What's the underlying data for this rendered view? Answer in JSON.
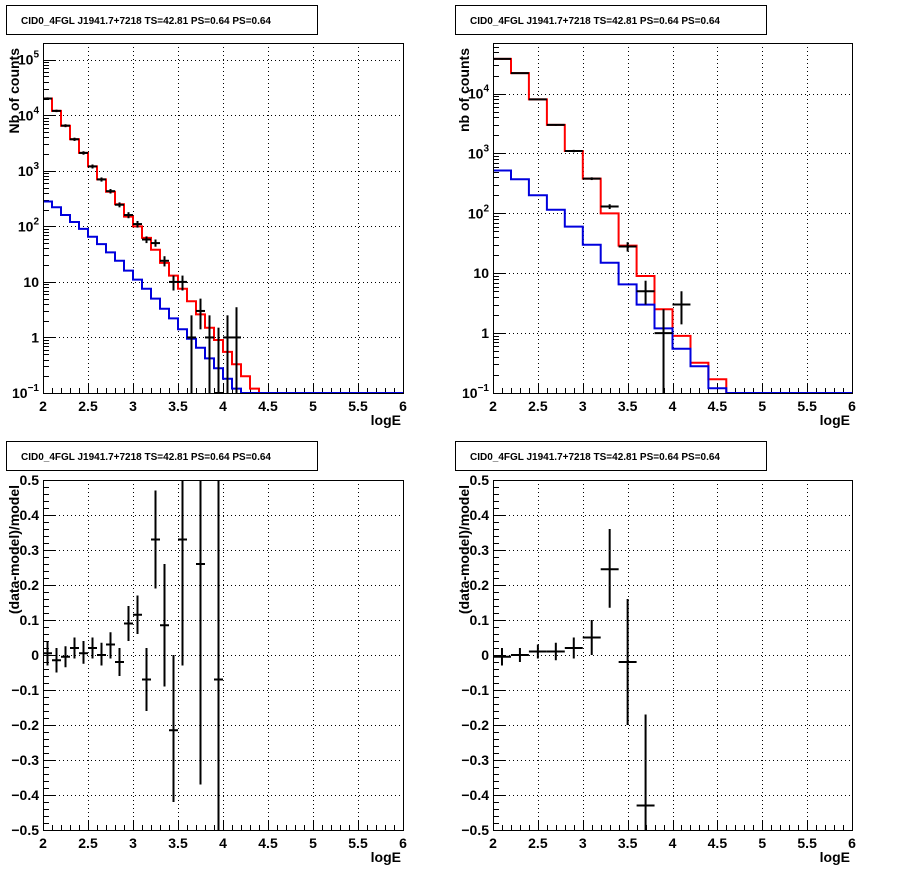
{
  "colors": {
    "data": "#000000",
    "total_model": "#ff0000",
    "component_model": "#0000dd"
  },
  "chart_data": [
    {
      "type": "line",
      "title": "CID0_4FGL J1941.7+7218 TS=42.81 PS=0.64 PS=0.64",
      "xlabel": "logE",
      "ylabel": "Nb of counts",
      "x_scale": "linear",
      "y_scale": "log",
      "xlim": [
        2,
        6
      ],
      "ylim": [
        0.1,
        200000
      ],
      "x_ticks": [
        "2",
        "2.5",
        "3",
        "3.5",
        "4",
        "4.5",
        "5",
        "5.5",
        "6"
      ],
      "y_ticks": [
        {
          "value": 0.1,
          "base": "10",
          "exp": "−1"
        },
        {
          "value": 1,
          "label": "1"
        },
        {
          "value": 10,
          "label": "10"
        },
        {
          "value": 100,
          "base": "10",
          "exp": "2"
        },
        {
          "value": 1000,
          "base": "10",
          "exp": "3"
        },
        {
          "value": 10000,
          "base": "10",
          "exp": "4"
        },
        {
          "value": 100000,
          "base": "10",
          "exp": "5"
        }
      ],
      "grid": true,
      "series": [
        {
          "role": "total_model",
          "style": "step",
          "bin_edges": [
            2.0,
            2.1,
            2.2,
            2.3,
            2.4,
            2.5,
            2.6,
            2.7,
            2.8,
            2.9,
            3.0,
            3.1,
            3.2,
            3.3,
            3.4,
            3.5,
            3.6,
            3.7,
            3.8,
            3.9,
            4.0,
            4.1,
            4.2,
            4.3,
            4.4,
            4.5,
            4.6,
            4.7,
            4.8,
            4.9,
            5.0,
            5.1,
            5.2,
            5.3,
            5.4,
            5.5,
            5.6,
            5.7,
            5.8,
            5.9,
            6.0
          ],
          "values": [
            20000,
            12000,
            6500,
            3700,
            2100,
            1200,
            700,
            420,
            250,
            150,
            100,
            62,
            38,
            22,
            13,
            7.5,
            4.5,
            2.6,
            1.5,
            0.9,
            0.55,
            0.33,
            0.2,
            0.12,
            0.1,
            0.1,
            0.1,
            0.1,
            0.1,
            0.1,
            0.1,
            0.1,
            0.1,
            0.1,
            0.1,
            0.1,
            0.1,
            0.1,
            0.1,
            0.1
          ]
        },
        {
          "role": "component_model",
          "style": "step",
          "bin_edges": [
            2.0,
            2.1,
            2.2,
            2.3,
            2.4,
            2.5,
            2.6,
            2.7,
            2.8,
            2.9,
            3.0,
            3.1,
            3.2,
            3.3,
            3.4,
            3.5,
            3.6,
            3.7,
            3.8,
            3.9,
            4.0,
            4.1,
            4.2,
            4.3,
            4.4,
            4.5,
            4.6,
            4.7,
            4.8,
            4.9,
            5.0,
            5.1,
            5.2,
            5.3,
            5.4,
            5.5,
            5.6,
            5.7,
            5.8,
            5.9,
            6.0
          ],
          "values": [
            280,
            220,
            160,
            120,
            90,
            65,
            48,
            34,
            24,
            16,
            11,
            7.5,
            5,
            3.3,
            2.2,
            1.4,
            0.95,
            0.65,
            0.42,
            0.28,
            0.18,
            0.12,
            0.1,
            0.1,
            0.1,
            0.1,
            0.1,
            0.1,
            0.1,
            0.1,
            0.1,
            0.1,
            0.1,
            0.1,
            0.1,
            0.1,
            0.1,
            0.1,
            0.1,
            0.1
          ]
        },
        {
          "role": "data",
          "style": "errorbar",
          "xerr": 0.05,
          "points": [
            {
              "x": 2.05,
              "y": 20000,
              "lo": 19000,
              "hi": 21000
            },
            {
              "x": 2.15,
              "y": 12000,
              "lo": 11400,
              "hi": 12600
            },
            {
              "x": 2.25,
              "y": 6500,
              "lo": 6100,
              "hi": 6900
            },
            {
              "x": 2.35,
              "y": 3700,
              "lo": 3450,
              "hi": 3950
            },
            {
              "x": 2.45,
              "y": 2100,
              "lo": 1950,
              "hi": 2250
            },
            {
              "x": 2.55,
              "y": 1200,
              "lo": 1100,
              "hi": 1300
            },
            {
              "x": 2.65,
              "y": 700,
              "lo": 640,
              "hi": 760
            },
            {
              "x": 2.75,
              "y": 430,
              "lo": 390,
              "hi": 470
            },
            {
              "x": 2.85,
              "y": 245,
              "lo": 220,
              "hi": 270
            },
            {
              "x": 2.95,
              "y": 160,
              "lo": 140,
              "hi": 180
            },
            {
              "x": 3.05,
              "y": 110,
              "lo": 95,
              "hi": 125
            },
            {
              "x": 3.15,
              "y": 58,
              "lo": 50,
              "hi": 66
            },
            {
              "x": 3.25,
              "y": 50,
              "lo": 43,
              "hi": 58
            },
            {
              "x": 3.35,
              "y": 24,
              "lo": 19,
              "hi": 29
            },
            {
              "x": 3.45,
              "y": 10,
              "lo": 7,
              "hi": 13
            },
            {
              "x": 3.55,
              "y": 10,
              "lo": 7,
              "hi": 13
            },
            {
              "x": 3.65,
              "y": 1,
              "lo": 0.1,
              "hi": 2.5
            },
            {
              "x": 3.75,
              "y": 3,
              "lo": 1.4,
              "hi": 5
            },
            {
              "x": 3.85,
              "y": 1,
              "lo": 0.1,
              "hi": 2.5
            },
            {
              "x": 3.95,
              "y": 0.1,
              "lo": 0.1,
              "hi": 1.5
            },
            {
              "x": 4.05,
              "y": 1,
              "lo": 0.1,
              "hi": 2.5
            },
            {
              "x": 4.15,
              "y": 1,
              "lo": 0.1,
              "hi": 3.5
            }
          ]
        }
      ]
    },
    {
      "type": "line",
      "title": "CID0_4FGL J1941.7+7218 TS=42.81 PS=0.64 PS=0.64",
      "xlabel": "logE",
      "ylabel": "nb of counts",
      "x_scale": "linear",
      "y_scale": "log",
      "xlim": [
        2,
        6
      ],
      "ylim": [
        0.1,
        70000
      ],
      "x_ticks": [
        "2",
        "2.5",
        "3",
        "3.5",
        "4",
        "4.5",
        "5",
        "5.5",
        "6"
      ],
      "y_ticks": [
        {
          "value": 0.1,
          "base": "10",
          "exp": "−1"
        },
        {
          "value": 1,
          "label": "1"
        },
        {
          "value": 10,
          "label": "10"
        },
        {
          "value": 100,
          "base": "10",
          "exp": "2"
        },
        {
          "value": 1000,
          "base": "10",
          "exp": "3"
        },
        {
          "value": 10000,
          "base": "10",
          "exp": "4"
        }
      ],
      "grid": true,
      "series": [
        {
          "role": "total_model",
          "style": "step",
          "bin_edges": [
            2.0,
            2.2,
            2.4,
            2.6,
            2.8,
            3.0,
            3.2,
            3.4,
            3.6,
            3.8,
            4.0,
            4.2,
            4.4,
            4.6,
            4.8,
            5.0,
            5.2,
            5.4,
            5.6,
            5.8,
            6.0
          ],
          "values": [
            38000,
            22000,
            8000,
            3000,
            1100,
            380,
            100,
            29,
            9,
            2.5,
            0.9,
            0.32,
            0.17,
            0.1,
            0.1,
            0.1,
            0.1,
            0.1,
            0.1,
            0.1
          ]
        },
        {
          "role": "component_model",
          "style": "step",
          "bin_edges": [
            2.0,
            2.2,
            2.4,
            2.6,
            2.8,
            3.0,
            3.2,
            3.4,
            3.6,
            3.8,
            4.0,
            4.2,
            4.4,
            4.6,
            4.8,
            5.0,
            5.2,
            5.4,
            5.6,
            5.8,
            6.0
          ],
          "values": [
            520,
            370,
            200,
            115,
            60,
            30,
            15,
            6.5,
            3,
            1.2,
            0.55,
            0.28,
            0.12,
            0.1,
            0.1,
            0.1,
            0.1,
            0.1,
            0.1,
            0.1
          ]
        },
        {
          "role": "data",
          "style": "errorbar",
          "xerr": 0.1,
          "points": [
            {
              "x": 2.1,
              "y": 38000,
              "lo": 37000,
              "hi": 39000
            },
            {
              "x": 2.3,
              "y": 22000,
              "lo": 21500,
              "hi": 22500
            },
            {
              "x": 2.5,
              "y": 8000,
              "lo": 7800,
              "hi": 8200
            },
            {
              "x": 2.7,
              "y": 3000,
              "lo": 2900,
              "hi": 3100
            },
            {
              "x": 2.9,
              "y": 1100,
              "lo": 1050,
              "hi": 1150
            },
            {
              "x": 3.1,
              "y": 380,
              "lo": 360,
              "hi": 400
            },
            {
              "x": 3.3,
              "y": 130,
              "lo": 118,
              "hi": 142
            },
            {
              "x": 3.5,
              "y": 28,
              "lo": 23,
              "hi": 33
            },
            {
              "x": 3.7,
              "y": 5,
              "lo": 3,
              "hi": 7.5
            },
            {
              "x": 3.9,
              "y": 1,
              "lo": 0.1,
              "hi": 2.5
            },
            {
              "x": 4.1,
              "y": 3,
              "lo": 1.4,
              "hi": 5
            }
          ]
        }
      ]
    },
    {
      "type": "scatter",
      "title": "CID0_4FGL J1941.7+7218 TS=42.81 PS=0.64 PS=0.64",
      "xlabel": "logE",
      "ylabel": "(data-model)/model",
      "x_scale": "linear",
      "y_scale": "linear",
      "xlim": [
        2,
        6
      ],
      "ylim": [
        -0.5,
        0.5
      ],
      "x_ticks": [
        "2",
        "2.5",
        "3",
        "3.5",
        "4",
        "4.5",
        "5",
        "5.5",
        "6"
      ],
      "y_ticks": [
        "−0.5",
        "−0.4",
        "−0.3",
        "−0.2",
        "−0.1",
        "0",
        "0.1",
        "0.2",
        "0.3",
        "0.4",
        "0.5"
      ],
      "grid": true,
      "series": [
        {
          "role": "data",
          "style": "errorbar",
          "xerr": 0.05,
          "points": [
            {
              "x": 2.05,
              "y": 0.005,
              "lo": -0.03,
              "hi": 0.04
            },
            {
              "x": 2.15,
              "y": -0.015,
              "lo": -0.05,
              "hi": 0.02
            },
            {
              "x": 2.25,
              "y": -0.005,
              "lo": -0.035,
              "hi": 0.025
            },
            {
              "x": 2.35,
              "y": 0.02,
              "lo": -0.01,
              "hi": 0.05
            },
            {
              "x": 2.45,
              "y": 0.005,
              "lo": -0.025,
              "hi": 0.04
            },
            {
              "x": 2.55,
              "y": 0.02,
              "lo": -0.01,
              "hi": 0.05
            },
            {
              "x": 2.65,
              "y": 0.0,
              "lo": -0.03,
              "hi": 0.035
            },
            {
              "x": 2.75,
              "y": 0.03,
              "lo": -0.01,
              "hi": 0.065
            },
            {
              "x": 2.85,
              "y": -0.02,
              "lo": -0.06,
              "hi": 0.02
            },
            {
              "x": 2.95,
              "y": 0.09,
              "lo": 0.04,
              "hi": 0.14
            },
            {
              "x": 3.05,
              "y": 0.115,
              "lo": 0.06,
              "hi": 0.17
            },
            {
              "x": 3.15,
              "y": -0.07,
              "lo": -0.16,
              "hi": 0.02
            },
            {
              "x": 3.25,
              "y": 0.33,
              "lo": 0.19,
              "hi": 0.47
            },
            {
              "x": 3.35,
              "y": 0.085,
              "lo": -0.09,
              "hi": 0.26
            },
            {
              "x": 3.45,
              "y": -0.215,
              "lo": -0.42,
              "hi": 0.0
            },
            {
              "x": 3.55,
              "y": 0.33,
              "lo": -0.03,
              "hi": 0.5
            },
            {
              "x": 3.75,
              "y": 0.26,
              "lo": -0.37,
              "hi": 0.5
            },
            {
              "x": 3.95,
              "y": -0.07,
              "lo": -0.5,
              "hi": 0.5
            }
          ]
        }
      ]
    },
    {
      "type": "scatter",
      "title": "CID0_4FGL J1941.7+7218 TS=42.81 PS=0.64 PS=0.64",
      "xlabel": "logE",
      "ylabel": "(data-model)/model",
      "x_scale": "linear",
      "y_scale": "linear",
      "xlim": [
        2,
        6
      ],
      "ylim": [
        -0.5,
        0.5
      ],
      "x_ticks": [
        "2",
        "2.5",
        "3",
        "3.5",
        "4",
        "4.5",
        "5",
        "5.5",
        "6"
      ],
      "y_ticks": [
        "−0.5",
        "−0.4",
        "−0.3",
        "−0.2",
        "−0.1",
        "0",
        "0.1",
        "0.2",
        "0.3",
        "0.4",
        "0.5"
      ],
      "grid": true,
      "series": [
        {
          "role": "data",
          "style": "errorbar",
          "xerr": 0.1,
          "points": [
            {
              "x": 2.1,
              "y": -0.005,
              "lo": -0.03,
              "hi": 0.02
            },
            {
              "x": 2.3,
              "y": 0.0,
              "lo": -0.02,
              "hi": 0.02
            },
            {
              "x": 2.5,
              "y": 0.01,
              "lo": -0.01,
              "hi": 0.03
            },
            {
              "x": 2.7,
              "y": 0.01,
              "lo": -0.015,
              "hi": 0.035
            },
            {
              "x": 2.9,
              "y": 0.02,
              "lo": -0.01,
              "hi": 0.05
            },
            {
              "x": 3.1,
              "y": 0.05,
              "lo": 0.0,
              "hi": 0.1
            },
            {
              "x": 3.3,
              "y": 0.245,
              "lo": 0.135,
              "hi": 0.36
            },
            {
              "x": 3.5,
              "y": -0.02,
              "lo": -0.2,
              "hi": 0.16
            },
            {
              "x": 3.7,
              "y": -0.43,
              "lo": -0.5,
              "hi": -0.17
            }
          ]
        }
      ]
    }
  ]
}
